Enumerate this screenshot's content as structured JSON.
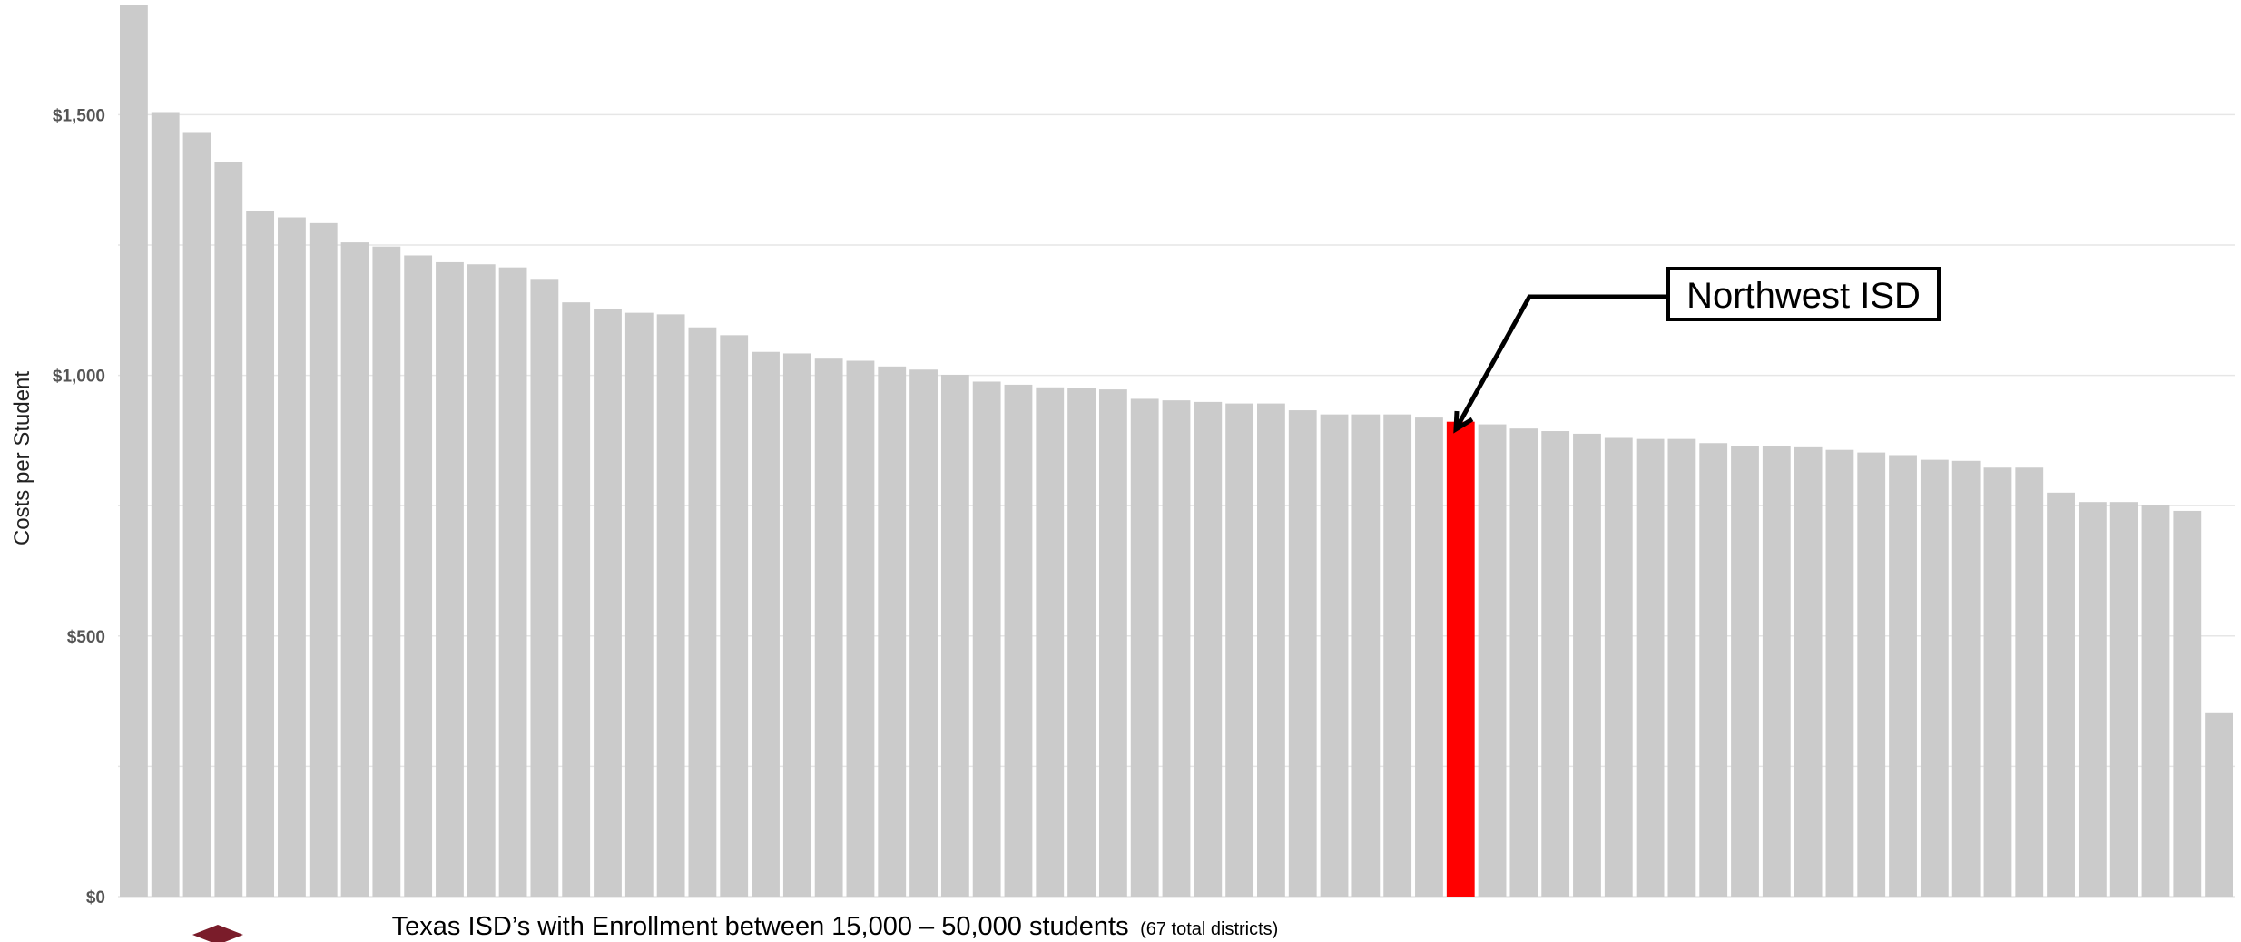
{
  "chart_data": {
    "type": "bar",
    "ylabel": "Costs per Student",
    "xlabel_main": "Texas ISD’s with Enrollment between 15,000 – 50,000 students",
    "xlabel_sub": "(67 total districts)",
    "ylim": [
      0,
      1720
    ],
    "yticks": [
      {
        "value": 0,
        "label": "$0"
      },
      {
        "value": 500,
        "label": "$500"
      },
      {
        "value": 1000,
        "label": "$1,000"
      },
      {
        "value": 1500,
        "label": "$1,500"
      }
    ],
    "grid": true,
    "values": [
      1710,
      1505,
      1465,
      1410,
      1315,
      1303,
      1292,
      1255,
      1247,
      1230,
      1217,
      1213,
      1207,
      1185,
      1140,
      1128,
      1120,
      1117,
      1092,
      1077,
      1045,
      1042,
      1032,
      1028,
      1017,
      1011,
      1001,
      988,
      982,
      977,
      975,
      973,
      955,
      952,
      949,
      946,
      946,
      933,
      925,
      925,
      925,
      919,
      911,
      906,
      898,
      893,
      888,
      880,
      878,
      878,
      870,
      865,
      865,
      862,
      857,
      852,
      847,
      838,
      836,
      823,
      823,
      775,
      757,
      757,
      752,
      740,
      352
    ],
    "highlight_index": 42,
    "bar_color": "#cbcbcb",
    "highlight_color": "#ff0000",
    "annotation": "Northwest ISD"
  }
}
